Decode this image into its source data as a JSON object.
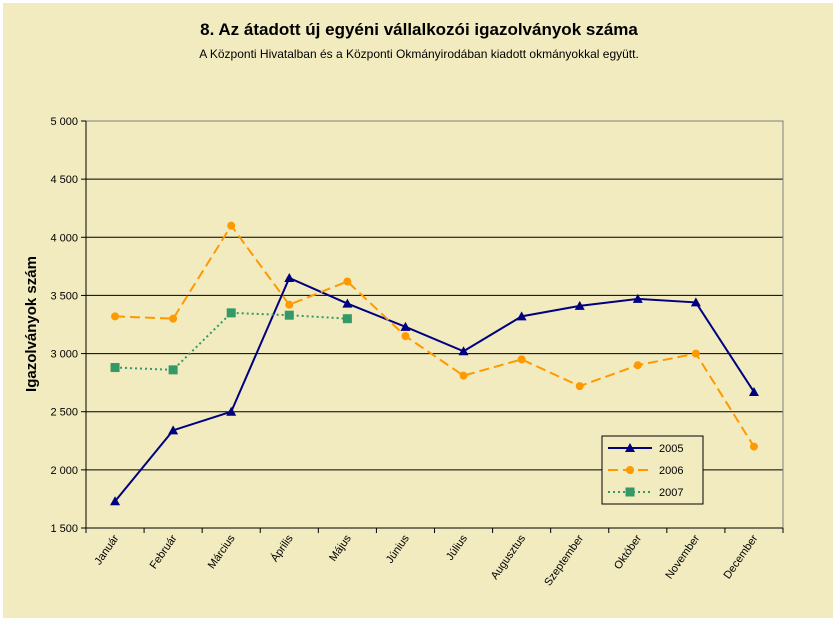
{
  "chart_data": {
    "type": "line",
    "title": "8. Az átadott új egyéni vállalkozói  igazolványok száma",
    "subtitle": "A Központi Hivatalban és a Központi Okmányirodában kiadott okmányokkal együtt.",
    "ylabel": "Igazolványok szám",
    "xlabel": "",
    "ylim": [
      1500,
      5000
    ],
    "yticks": [
      1500,
      2000,
      2500,
      3000,
      3500,
      4000,
      4500,
      5000
    ],
    "ytick_labels": [
      "1 500",
      "2 000",
      "2 500",
      "3 000",
      "3 500",
      "4 000",
      "4 500",
      "5 000"
    ],
    "grid": "horizontal",
    "legend_position": "bottom-right",
    "categories": [
      "Január",
      "Február",
      "Március",
      "Április",
      "Május",
      "Június",
      "Július",
      "Augusztus",
      "Szeptember",
      "Október",
      "November",
      "December"
    ],
    "series": [
      {
        "name": "2005",
        "color": "#000080",
        "marker": "triangle",
        "dash": "solid",
        "values": [
          1730,
          2340,
          2500,
          3650,
          3430,
          3230,
          3020,
          3320,
          3410,
          3470,
          3440,
          2670
        ]
      },
      {
        "name": "2006",
        "color": "#ff9900",
        "marker": "circle",
        "dash": "dashed",
        "values": [
          3320,
          3300,
          4100,
          3420,
          3620,
          3150,
          2810,
          2950,
          2720,
          2900,
          3000,
          2200
        ]
      },
      {
        "name": "2007",
        "color": "#339966",
        "marker": "square",
        "dash": "dotted",
        "values": [
          2880,
          2860,
          3350,
          3330,
          3300,
          null,
          null,
          null,
          null,
          null,
          null,
          null
        ]
      }
    ]
  }
}
